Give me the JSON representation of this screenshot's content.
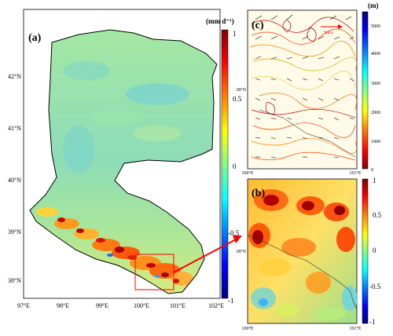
{
  "panels": {
    "a": {
      "letter": "(a)",
      "x_ticks": [
        "97°E",
        "98°E",
        "99°E",
        "100°E",
        "101°E",
        "102°E"
      ],
      "y_ticks": [
        "42°N",
        "41°N",
        "40°N",
        "39°N",
        "38°N"
      ],
      "colorbar": {
        "unit": "(mm d⁻¹)",
        "ticks": [
          "1",
          "0.5",
          "0",
          "-0.5",
          "-1"
        ]
      }
    },
    "b": {
      "letter": "(b)",
      "x_ticks": [
        "100°E",
        "101°E"
      ],
      "y_ticks": [
        "38°N"
      ],
      "colorbar": {
        "ticks": [
          "1",
          "0.5",
          "0",
          "-0.5",
          "-1"
        ]
      }
    },
    "c": {
      "letter": "(c)",
      "x_ticks": [
        "100°E",
        "101°E"
      ],
      "y_ticks": [
        "38°N"
      ],
      "vector_key": "5m/s",
      "colorbar": {
        "unit": "(m)",
        "ticks": [
          "5000",
          "4000",
          "3000",
          "2000",
          "1000",
          "0"
        ]
      }
    }
  },
  "colors": {
    "colormap": [
      "#00007f",
      "#0000ff",
      "#0080ff",
      "#00ffff",
      "#80ff80",
      "#ffff00",
      "#ff8000",
      "#ff0000",
      "#7f0000"
    ],
    "terrain": [
      "#8b0000",
      "#ff0000",
      "#ff8000",
      "#ffff00",
      "#80ff80",
      "#00ffff",
      "#0080ff",
      "#0000ff",
      "#00007f"
    ],
    "field_base": "#9be4a8",
    "highlight_box": "#ff0000",
    "arrow": "#ff0000"
  }
}
